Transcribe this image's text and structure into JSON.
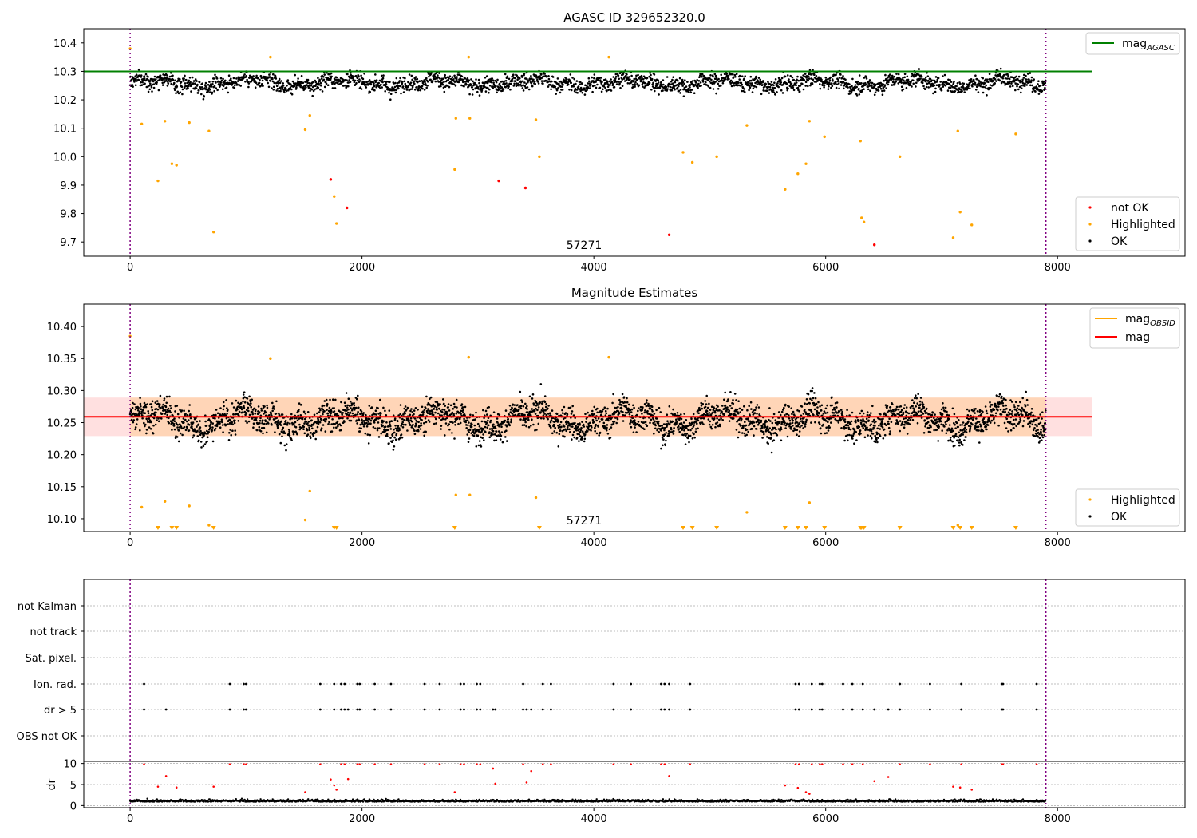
{
  "chart_data": [
    {
      "type": "scatter",
      "title": "AGASC ID 329652320.0",
      "annotation": "57271",
      "xlim": [
        -400,
        9100
      ],
      "ylim": [
        9.65,
        10.45
      ],
      "x_ticks": [
        0,
        2000,
        4000,
        6000,
        8000
      ],
      "x_tick_labels": [
        "0",
        "2000",
        "4000",
        "6000",
        "8000"
      ],
      "y_ticks": [
        9.7,
        9.8,
        9.9,
        10.0,
        10.1,
        10.2,
        10.3,
        10.4
      ],
      "y_tick_labels": [
        "9.7",
        "9.8",
        "9.9",
        "10.0",
        "10.1",
        "10.2",
        "10.3",
        "10.4"
      ],
      "vlines": [
        0,
        7900
      ],
      "ok_band": {
        "x_range": [
          0,
          7900
        ],
        "center": 10.26,
        "spread": 0.035
      },
      "reference_line": {
        "name": "mag",
        "subscript": "AGASC",
        "y": 10.3,
        "x_range": [
          -400,
          8300
        ],
        "color": "#008000"
      },
      "legend_upper": [
        {
          "label": "mag",
          "subscript": "AGASC",
          "color": "#008000",
          "marker": "line"
        }
      ],
      "legend_lower": [
        {
          "label": "not OK",
          "color": "#ff0000",
          "marker": "dot"
        },
        {
          "label": "Highlighted",
          "color": "#ffa500",
          "marker": "dot"
        },
        {
          "label": "OK",
          "color": "#000000",
          "marker": "dot"
        }
      ],
      "series": [
        {
          "name": "not OK",
          "color": "#ff0000",
          "points": [
            [
              1730,
              9.92
            ],
            [
              1870,
              9.82
            ],
            [
              3180,
              9.915
            ],
            [
              3410,
              9.89
            ],
            [
              4650,
              9.725
            ],
            [
              6420,
              9.69
            ]
          ]
        },
        {
          "name": "Highlighted",
          "color": "#ffa500",
          "points": [
            [
              0,
              10.38
            ],
            [
              100,
              10.115
            ],
            [
              240,
              9.915
            ],
            [
              300,
              10.125
            ],
            [
              360,
              9.975
            ],
            [
              400,
              9.97
            ],
            [
              510,
              10.12
            ],
            [
              680,
              10.09
            ],
            [
              720,
              9.735
            ],
            [
              1210,
              10.35
            ],
            [
              1510,
              10.095
            ],
            [
              1550,
              10.145
            ],
            [
              1760,
              9.86
            ],
            [
              1780,
              9.765
            ],
            [
              2800,
              9.955
            ],
            [
              2810,
              10.135
            ],
            [
              2920,
              10.35
            ],
            [
              2930,
              10.135
            ],
            [
              3500,
              10.13
            ],
            [
              3530,
              10.0
            ],
            [
              4130,
              10.35
            ],
            [
              4770,
              10.015
            ],
            [
              4850,
              9.98
            ],
            [
              5060,
              10.0
            ],
            [
              5320,
              10.11
            ],
            [
              5650,
              9.885
            ],
            [
              5760,
              9.94
            ],
            [
              5830,
              9.975
            ],
            [
              5860,
              10.125
            ],
            [
              5990,
              10.07
            ],
            [
              6300,
              10.055
            ],
            [
              6310,
              9.785
            ],
            [
              6330,
              9.77
            ],
            [
              6640,
              10.0
            ],
            [
              7100,
              9.715
            ],
            [
              7140,
              10.09
            ],
            [
              7160,
              9.805
            ],
            [
              7260,
              9.76
            ],
            [
              7640,
              10.08
            ]
          ]
        }
      ]
    },
    {
      "type": "scatter",
      "title": "Magnitude Estimates",
      "annotation": "57271",
      "xlim": [
        -400,
        9100
      ],
      "ylim": [
        10.08,
        10.435
      ],
      "x_ticks": [
        0,
        2000,
        4000,
        6000,
        8000
      ],
      "x_tick_labels": [
        "0",
        "2000",
        "4000",
        "6000",
        "8000"
      ],
      "y_ticks": [
        10.1,
        10.15,
        10.2,
        10.25,
        10.3,
        10.35,
        10.4
      ],
      "y_tick_labels": [
        "10.10",
        "10.15",
        "10.20",
        "10.25",
        "10.30",
        "10.35",
        "10.40"
      ],
      "vlines": [
        0,
        7900
      ],
      "ok_band": {
        "x_range": [
          0,
          7900
        ],
        "center": 10.255,
        "spread": 0.03
      },
      "mean_line": {
        "y": 10.259,
        "x_range": [
          -400,
          8300
        ],
        "color": "#ff0000",
        "band": [
          10.229,
          10.289
        ]
      },
      "orange_band": {
        "x_range": [
          0,
          7900
        ],
        "band": [
          10.229,
          10.289
        ]
      },
      "legend_upper": [
        {
          "label": "mag",
          "subscript": "OBSID",
          "color": "#ffa500",
          "marker": "line"
        },
        {
          "label": "mag",
          "subscript": "",
          "color": "#ff0000",
          "marker": "line"
        }
      ],
      "legend_lower": [
        {
          "label": "Highlighted",
          "color": "#ffa500",
          "marker": "dot"
        },
        {
          "label": "OK",
          "color": "#000000",
          "marker": "dot"
        }
      ],
      "series": [
        {
          "name": "Highlighted",
          "color": "#ffa500",
          "points": [
            [
              0,
              10.385
            ],
            [
              100,
              10.118
            ],
            [
              300,
              10.127
            ],
            [
              510,
              10.12
            ],
            [
              680,
              10.09
            ],
            [
              1210,
              10.35
            ],
            [
              1510,
              10.098
            ],
            [
              1550,
              10.143
            ],
            [
              2810,
              10.137
            ],
            [
              2930,
              10.137
            ],
            [
              3500,
              10.133
            ],
            [
              4130,
              10.352
            ],
            [
              5320,
              10.11
            ],
            [
              5860,
              10.125
            ],
            [
              7140,
              10.09
            ],
            [
              2920,
              10.352
            ]
          ]
        },
        {
          "name": "Highlighted (below range)",
          "color": "#ffa500",
          "marker": "triangle",
          "x": [
            240,
            360,
            400,
            720,
            1760,
            1780,
            2800,
            3530,
            4770,
            4850,
            5060,
            5650,
            5760,
            5830,
            5990,
            6300,
            6310,
            6330,
            6640,
            7100,
            7160,
            7260,
            7640
          ]
        }
      ]
    },
    {
      "type": "scatter",
      "xlim": [
        -400,
        9100
      ],
      "x_ticks": [
        0,
        2000,
        4000,
        6000,
        8000
      ],
      "x_tick_labels": [
        "0",
        "2000",
        "4000",
        "6000",
        "8000"
      ],
      "vlines": [
        0,
        7900
      ],
      "flag_rows": [
        "not Kalman",
        "not track",
        "Sat. pixel.",
        "Ion. rad.",
        "dr > 5",
        "OBS not OK"
      ],
      "flags": {
        "Ion. rad.": [
          120,
          860,
          980,
          1000,
          1640,
          1760,
          1820,
          1850,
          1960,
          1980,
          2110,
          2250,
          2540,
          2670,
          2850,
          2880,
          2990,
          3020,
          3390,
          3560,
          3630,
          4170,
          4320,
          4580,
          4610,
          4650,
          4830,
          5740,
          5770,
          5880,
          5950,
          5970,
          6150,
          6230,
          6320,
          6640,
          6900,
          7170,
          7520,
          7530,
          7820
        ],
        "dr > 5": [
          120,
          310,
          860,
          980,
          1000,
          1640,
          1760,
          1820,
          1850,
          1880,
          1960,
          1980,
          2110,
          2250,
          2540,
          2670,
          2850,
          2880,
          2990,
          3020,
          3130,
          3150,
          3390,
          3420,
          3460,
          3560,
          3630,
          4170,
          4320,
          4580,
          4610,
          4650,
          4830,
          5740,
          5770,
          5880,
          5950,
          5970,
          6150,
          6230,
          6320,
          6420,
          6540,
          6640,
          6900,
          7170,
          7520,
          7530,
          7820
        ]
      },
      "dr_panel": {
        "ylabel": "dr",
        "ylim": [
          -0.5,
          10.5
        ],
        "y_ticks": [
          0,
          5,
          10
        ],
        "y_tick_labels": [
          "0",
          "5",
          "10"
        ],
        "outliers_color": "#ff0000",
        "outliers": [
          [
            120,
            9.8
          ],
          [
            240,
            4.5
          ],
          [
            310,
            7
          ],
          [
            400,
            4.3
          ],
          [
            720,
            4.5
          ],
          [
            860,
            9.8
          ],
          [
            980,
            9.8
          ],
          [
            1000,
            9.8
          ],
          [
            1510,
            3.2
          ],
          [
            1640,
            9.8
          ],
          [
            1730,
            6.2
          ],
          [
            1760,
            4.8
          ],
          [
            1780,
            3.8
          ],
          [
            1820,
            9.8
          ],
          [
            1850,
            9.8
          ],
          [
            1880,
            6.3
          ],
          [
            1960,
            9.8
          ],
          [
            1980,
            9.8
          ],
          [
            2110,
            9.8
          ],
          [
            2250,
            9.8
          ],
          [
            2540,
            9.8
          ],
          [
            2670,
            9.8
          ],
          [
            2800,
            3.2
          ],
          [
            2850,
            9.8
          ],
          [
            2880,
            9.8
          ],
          [
            2990,
            9.8
          ],
          [
            3020,
            9.8
          ],
          [
            3130,
            8.8
          ],
          [
            3150,
            5.2
          ],
          [
            3390,
            9.8
          ],
          [
            3420,
            5.5
          ],
          [
            3460,
            8.2
          ],
          [
            3560,
            9.8
          ],
          [
            3630,
            9.8
          ],
          [
            4170,
            9.8
          ],
          [
            4320,
            9.8
          ],
          [
            4580,
            9.8
          ],
          [
            4610,
            9.8
          ],
          [
            4650,
            7
          ],
          [
            4830,
            9.8
          ],
          [
            5650,
            4.8
          ],
          [
            5740,
            9.8
          ],
          [
            5770,
            9.8
          ],
          [
            5760,
            4.2
          ],
          [
            5830,
            3.2
          ],
          [
            5860,
            2.8
          ],
          [
            5880,
            9.8
          ],
          [
            5950,
            9.8
          ],
          [
            5970,
            9.8
          ],
          [
            6150,
            9.8
          ],
          [
            6230,
            9.8
          ],
          [
            6320,
            9.8
          ],
          [
            6420,
            5.8
          ],
          [
            6540,
            6.8
          ],
          [
            6640,
            9.8
          ],
          [
            6900,
            9.8
          ],
          [
            7100,
            4.5
          ],
          [
            7160,
            4.3
          ],
          [
            7170,
            9.8
          ],
          [
            7260,
            3.8
          ],
          [
            7520,
            9.8
          ],
          [
            7530,
            9.8
          ],
          [
            7820,
            9.8
          ]
        ]
      }
    }
  ]
}
